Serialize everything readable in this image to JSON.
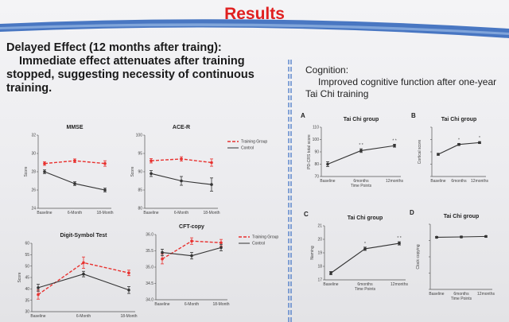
{
  "slide": {
    "title": "Results",
    "delayed_heading": "Delayed Effect (12 months after traing):",
    "left_line1": "Immediate effect attenuates after training",
    "left_line2": "stopped, suggesting necessity of continuous",
    "left_line3": "training.",
    "cognition_heading": "Cognition:",
    "cognition_line1": "Improved cognitive function after one-year",
    "cognition_line2": "Tai Chi training"
  },
  "colors": {
    "title": "#e02020",
    "training": "#e8312f",
    "control": "#333333",
    "stripe": "#2a60b8"
  },
  "chart_data": [
    {
      "type": "line",
      "title": "MMSE",
      "ylabel": "Score",
      "categories": [
        "Baseline",
        "6-Month",
        "18-Month"
      ],
      "yticks": [
        "24",
        "26",
        "28",
        "30",
        "32"
      ],
      "ylim": [
        24,
        32
      ],
      "legend": [
        "Training Group",
        "Control"
      ],
      "series": [
        {
          "name": "Training Group",
          "values": [
            28.9,
            29.2,
            28.9
          ],
          "err": [
            0.2,
            0.2,
            0.3
          ],
          "style": "dashed"
        },
        {
          "name": "Control",
          "values": [
            28.0,
            26.7,
            26.0
          ],
          "err": [
            0.2,
            0.2,
            0.2
          ],
          "style": "solid"
        }
      ]
    },
    {
      "type": "line",
      "title": "ACE-R",
      "ylabel": "Score",
      "categories": [
        "Baseline",
        "6-Month",
        "18-Month"
      ],
      "yticks": [
        "80",
        "85",
        "90",
        "95",
        "100"
      ],
      "ylim": [
        80,
        100
      ],
      "legend": [
        "Training Group",
        "Control"
      ],
      "series": [
        {
          "name": "Training Group",
          "values": [
            93,
            93.5,
            92.5
          ],
          "err": [
            0.6,
            0.6,
            1
          ],
          "style": "dashed"
        },
        {
          "name": "Control",
          "values": [
            89.5,
            87.5,
            86.5
          ],
          "err": [
            0.8,
            1.2,
            1.8
          ],
          "style": "solid"
        }
      ]
    },
    {
      "type": "line",
      "title": "Digit-Symbol Test",
      "ylabel": "Score",
      "categories": [
        "Baseline",
        "6-Month",
        "18-Month"
      ],
      "yticks": [
        "30",
        "35",
        "40",
        "45",
        "50",
        "55",
        "60"
      ],
      "ylim": [
        30,
        60
      ],
      "legend": [],
      "series": [
        {
          "name": "",
          "values": [
            37.5,
            51.5,
            47
          ],
          "err": [
            2,
            2.5,
            1.2
          ],
          "style": "dashed"
        },
        {
          "name": "",
          "values": [
            40.5,
            46.5,
            39.5
          ],
          "err": [
            1.5,
            1.2,
            1.5
          ],
          "style": "solid"
        }
      ]
    },
    {
      "type": "line",
      "title": "CFT-copy",
      "ylabel": "",
      "categories": [
        "Baseline",
        "6-Month",
        "18-Month"
      ],
      "yticks": [
        "34.0",
        "34.5",
        "35.0",
        "35.5",
        "36.0"
      ],
      "ylim": [
        34,
        36
      ],
      "legend": [
        "Training Group",
        "Control"
      ],
      "series": [
        {
          "name": "Training Group",
          "values": [
            35.25,
            35.8,
            35.75
          ],
          "err": [
            0.15,
            0.1,
            0.1
          ],
          "style": "dashed"
        },
        {
          "name": "Control",
          "values": [
            35.45,
            35.35,
            35.6
          ],
          "err": [
            0.1,
            0.1,
            0.1
          ],
          "style": "solid"
        }
      ]
    },
    {
      "type": "line",
      "panel": "A",
      "title": "Tai Chi group",
      "ylabel": "PD-CRS total score",
      "xlabel": "Time Points",
      "categories": [
        "Baseline",
        "6months",
        "12months"
      ],
      "yticks": [
        "70",
        "80",
        "90",
        "100",
        "110"
      ],
      "ylim": [
        70,
        110
      ],
      "stars": [
        "",
        "* *",
        "* *"
      ],
      "series": [
        {
          "name": "",
          "values": [
            80,
            91,
            95
          ],
          "err": [
            2,
            1.5,
            1.2
          ],
          "style": "solid"
        }
      ]
    },
    {
      "type": "line",
      "panel": "B",
      "title": "Tai Chi group",
      "ylabel": "Cortical score",
      "xlabel": "",
      "categories": [
        "Baseline",
        "6months",
        "12months"
      ],
      "yticks": [
        "",
        "",
        "",
        "",
        ""
      ],
      "ylim": [
        0,
        4
      ],
      "stars": [
        "",
        "*",
        "*"
      ],
      "series": [
        {
          "name": "",
          "values": [
            1.8,
            2.6,
            2.75
          ],
          "err": [
            0.08,
            0.08,
            0.08
          ],
          "style": "solid"
        }
      ]
    },
    {
      "type": "line",
      "panel": "C",
      "title": "Tai Chi group",
      "ylabel": "Naming",
      "xlabel": "Time Points",
      "categories": [
        "Baseline",
        "6months",
        "12months"
      ],
      "yticks": [
        "17",
        "18",
        "19",
        "20",
        "21"
      ],
      "ylim": [
        17,
        21
      ],
      "stars": [
        "",
        "*",
        "* *"
      ],
      "series": [
        {
          "name": "",
          "values": [
            17.5,
            19.3,
            19.7
          ],
          "err": [
            0.12,
            0.12,
            0.12
          ],
          "style": "solid"
        }
      ]
    },
    {
      "type": "line",
      "panel": "D",
      "title": "Tai Chi group",
      "ylabel": "Clock copying",
      "xlabel": "Time Points",
      "categories": [
        "Baseline",
        "6months",
        "12months"
      ],
      "yticks": [
        "",
        "",
        "",
        "",
        ""
      ],
      "ylim": [
        0,
        4
      ],
      "stars": [
        "",
        "",
        ""
      ],
      "series": [
        {
          "name": "",
          "values": [
            3.2,
            3.22,
            3.25
          ],
          "err": [
            0.05,
            0.05,
            0.05
          ],
          "style": "solid"
        }
      ]
    }
  ]
}
